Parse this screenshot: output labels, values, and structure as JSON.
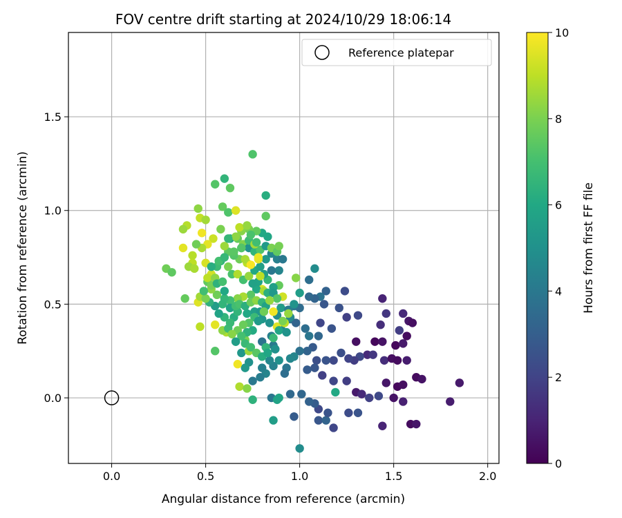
{
  "chart_data": {
    "type": "scatter",
    "title": "FOV centre drift starting at 2024/10/29 18:06:14",
    "xlabel": "Angular distance from reference (arcmin)",
    "ylabel": "Rotation from reference (arcmin)",
    "xlim": [
      -0.23,
      2.06
    ],
    "ylim": [
      -0.35,
      1.95
    ],
    "xticks": [
      "0.0",
      "0.5",
      "1.0",
      "1.5",
      "2.0"
    ],
    "xtick_values": [
      0,
      0.5,
      1.0,
      1.5,
      2.0
    ],
    "yticks": [
      "0.0",
      "0.5",
      "1.0",
      "1.5"
    ],
    "ytick_values": [
      0,
      0.5,
      1.0,
      1.5
    ],
    "grid": true,
    "legend": {
      "placement": "top-right",
      "entries": [
        "Reference platepar"
      ]
    },
    "reference_point": {
      "x": 0.0,
      "y": 0.0
    },
    "colorbar": {
      "label": "Hours from first FF file",
      "min": 0,
      "max": 10,
      "ticks": [
        "0",
        "2",
        "4",
        "6",
        "8",
        "10"
      ],
      "tick_values": [
        0,
        2,
        4,
        6,
        8,
        10
      ],
      "colormap": "viridis"
    },
    "points": [
      [
        1.44,
        0.53,
        1.0
      ],
      [
        1.46,
        0.45,
        1.6
      ],
      [
        1.55,
        0.45,
        1.2
      ],
      [
        1.58,
        0.41,
        0.6
      ],
      [
        1.6,
        0.4,
        0.4
      ],
      [
        1.43,
        0.39,
        1.3
      ],
      [
        1.53,
        0.36,
        1.8
      ],
      [
        1.4,
        0.3,
        0.2
      ],
      [
        1.44,
        0.3,
        0.5
      ],
      [
        1.51,
        0.28,
        0.2
      ],
      [
        1.55,
        0.29,
        0.7
      ],
      [
        1.57,
        0.33,
        0.3
      ],
      [
        1.36,
        0.23,
        1.2
      ],
      [
        1.39,
        0.23,
        1.6
      ],
      [
        1.45,
        0.2,
        1.3
      ],
      [
        1.49,
        0.21,
        0.4
      ],
      [
        1.52,
        0.2,
        0.3
      ],
      [
        1.57,
        0.2,
        0.8
      ],
      [
        1.62,
        0.11,
        0.3
      ],
      [
        1.65,
        0.1,
        0.5
      ],
      [
        1.46,
        0.08,
        0.6
      ],
      [
        1.52,
        0.06,
        0.2
      ],
      [
        1.55,
        0.07,
        0.4
      ],
      [
        1.85,
        0.08,
        0.7
      ],
      [
        1.8,
        -0.02,
        0.8
      ],
      [
        1.59,
        -0.14,
        0.3
      ],
      [
        1.62,
        -0.14,
        0.6
      ],
      [
        1.44,
        -0.15,
        1.0
      ],
      [
        1.3,
        0.3,
        0.4
      ],
      [
        1.32,
        0.22,
        2.2
      ],
      [
        1.29,
        0.2,
        1.8
      ],
      [
        1.26,
        0.21,
        2.0
      ],
      [
        1.22,
        0.24,
        2.4
      ],
      [
        1.18,
        0.2,
        2.2
      ],
      [
        1.14,
        0.2,
        2.6
      ],
      [
        1.09,
        0.2,
        2.4
      ],
      [
        1.12,
        0.12,
        1.9
      ],
      [
        1.18,
        0.09,
        2.1
      ],
      [
        1.25,
        0.09,
        1.8
      ],
      [
        1.3,
        0.03,
        0.7
      ],
      [
        1.33,
        0.02,
        1.2
      ],
      [
        1.37,
        0.0,
        1.9
      ],
      [
        1.42,
        0.01,
        2.2
      ],
      [
        1.5,
        0.0,
        0.5
      ],
      [
        1.55,
        -0.02,
        0.9
      ],
      [
        1.26,
        -0.08,
        2.3
      ],
      [
        1.31,
        -0.08,
        2.6
      ],
      [
        1.18,
        -0.16,
        2.1
      ],
      [
        1.1,
        -0.12,
        2.7
      ],
      [
        1.14,
        -0.12,
        3.2
      ],
      [
        1.1,
        -0.06,
        2.2
      ],
      [
        1.08,
        -0.03,
        2.9
      ],
      [
        1.05,
        -0.02,
        3.1
      ],
      [
        1.01,
        0.02,
        3.3
      ],
      [
        0.97,
        -0.1,
        2.9
      ],
      [
        0.95,
        0.02,
        3.4
      ],
      [
        0.85,
        0.0,
        3.9
      ],
      [
        0.89,
        0.0,
        5.9
      ],
      [
        1.0,
        -0.27,
        4.8
      ],
      [
        1.24,
        0.57,
        2.3
      ],
      [
        1.21,
        0.48,
        2.5
      ],
      [
        1.25,
        0.43,
        1.9
      ],
      [
        1.31,
        0.44,
        2.2
      ],
      [
        1.17,
        0.37,
        2.6
      ],
      [
        1.13,
        0.5,
        2.7
      ],
      [
        1.11,
        0.4,
        2.1
      ],
      [
        1.14,
        0.57,
        3.1
      ],
      [
        1.11,
        0.54,
        3.8
      ],
      [
        1.08,
        0.53,
        3.2
      ],
      [
        1.05,
        0.54,
        3.4
      ],
      [
        1.05,
        0.63,
        3.6
      ],
      [
        1.08,
        0.69,
        4.8
      ],
      [
        1.0,
        0.48,
        3.5
      ],
      [
        0.97,
        0.49,
        3.8
      ],
      [
        0.95,
        0.42,
        3.9
      ],
      [
        0.98,
        0.4,
        3.2
      ],
      [
        1.03,
        0.37,
        3.6
      ],
      [
        1.05,
        0.33,
        3.9
      ],
      [
        1.1,
        0.33,
        3.3
      ],
      [
        1.07,
        0.27,
        2.8
      ],
      [
        1.04,
        0.25,
        3.2
      ],
      [
        1.0,
        0.25,
        3.7
      ],
      [
        0.97,
        0.22,
        4.5
      ],
      [
        0.93,
        0.16,
        3.9
      ],
      [
        0.92,
        0.13,
        3.6
      ],
      [
        1.08,
        0.16,
        2.7
      ],
      [
        1.04,
        0.15,
        2.9
      ],
      [
        0.9,
        0.37,
        4.4
      ],
      [
        0.85,
        0.33,
        4.3
      ],
      [
        0.8,
        0.3,
        3.8
      ],
      [
        0.86,
        0.28,
        4.1
      ],
      [
        0.82,
        0.27,
        6.5
      ],
      [
        0.87,
        0.26,
        4.7
      ],
      [
        0.89,
        0.2,
        5.0
      ],
      [
        0.95,
        0.21,
        4.6
      ],
      [
        0.86,
        0.17,
        4.4
      ],
      [
        0.82,
        0.13,
        4.5
      ],
      [
        0.79,
        0.11,
        4.2
      ],
      [
        0.75,
        0.09,
        4.0
      ],
      [
        0.8,
        0.16,
        4.3
      ],
      [
        0.84,
        0.2,
        4.6
      ],
      [
        0.73,
        0.19,
        5.0
      ],
      [
        0.69,
        0.24,
        5.3
      ],
      [
        0.71,
        0.16,
        5.3
      ],
      [
        0.68,
        0.06,
        8.8
      ],
      [
        0.72,
        0.05,
        8.2
      ],
      [
        0.67,
        0.18,
        9.8
      ],
      [
        0.66,
        0.3,
        6.5
      ],
      [
        0.71,
        0.31,
        8.0
      ],
      [
        0.73,
        0.25,
        8.5
      ],
      [
        0.86,
        -0.12,
        5.5
      ],
      [
        0.88,
        -0.01,
        5.8
      ],
      [
        0.75,
        -0.01,
        6.4
      ],
      [
        1.19,
        0.03,
        6.0
      ],
      [
        1.15,
        -0.08,
        2.6
      ],
      [
        0.55,
        0.25,
        7.3
      ],
      [
        0.47,
        0.38,
        9.0
      ],
      [
        0.55,
        0.39,
        9.6
      ],
      [
        0.61,
        0.35,
        8.8
      ],
      [
        0.59,
        0.36,
        8.3
      ],
      [
        0.62,
        0.37,
        6.8
      ],
      [
        0.65,
        0.43,
        6.2
      ],
      [
        0.67,
        0.46,
        6.5
      ],
      [
        0.72,
        0.45,
        6.0
      ],
      [
        0.76,
        0.46,
        5.6
      ],
      [
        0.8,
        0.42,
        5.2
      ],
      [
        0.84,
        0.4,
        5.0
      ],
      [
        0.88,
        0.44,
        4.8
      ],
      [
        0.9,
        0.48,
        5.5
      ],
      [
        0.94,
        0.47,
        4.2
      ],
      [
        0.95,
        0.43,
        4.6
      ],
      [
        0.92,
        0.4,
        9.0
      ],
      [
        0.88,
        0.38,
        9.5
      ],
      [
        0.86,
        0.46,
        9.8
      ],
      [
        0.91,
        0.54,
        9.3
      ],
      [
        0.98,
        0.64,
        8.2
      ],
      [
        0.89,
        0.6,
        7.6
      ],
      [
        0.86,
        0.59,
        5.6
      ],
      [
        0.83,
        0.63,
        6.6
      ],
      [
        0.8,
        0.58,
        9.4
      ],
      [
        0.77,
        0.58,
        6.0
      ],
      [
        0.74,
        0.55,
        7.4
      ],
      [
        0.7,
        0.54,
        8.7
      ],
      [
        0.67,
        0.53,
        8.2
      ],
      [
        0.63,
        0.52,
        6.9
      ],
      [
        0.6,
        0.53,
        6.6
      ],
      [
        0.56,
        0.55,
        7.8
      ],
      [
        0.53,
        0.58,
        8.3
      ],
      [
        0.51,
        0.62,
        7.5
      ],
      [
        0.53,
        0.66,
        9.3
      ],
      [
        0.56,
        0.7,
        6.8
      ],
      [
        0.58,
        0.73,
        6.5
      ],
      [
        0.62,
        0.7,
        8.0
      ],
      [
        0.64,
        0.66,
        7.1
      ],
      [
        0.67,
        0.66,
        8.8
      ],
      [
        0.7,
        0.63,
        7.0
      ],
      [
        0.73,
        0.65,
        8.4
      ],
      [
        0.76,
        0.68,
        6.0
      ],
      [
        0.79,
        0.7,
        5.6
      ],
      [
        0.82,
        0.74,
        5.3
      ],
      [
        0.85,
        0.77,
        4.6
      ],
      [
        0.88,
        0.74,
        4.3
      ],
      [
        0.91,
        0.74,
        4.0
      ],
      [
        0.89,
        0.68,
        4.5
      ],
      [
        0.85,
        0.68,
        4.0
      ],
      [
        0.81,
        0.66,
        5.5
      ],
      [
        0.78,
        0.62,
        5.8
      ],
      [
        0.75,
        0.61,
        5.7
      ],
      [
        0.72,
        0.72,
        9.0
      ],
      [
        0.68,
        0.74,
        7.8
      ],
      [
        0.65,
        0.76,
        7.3
      ],
      [
        0.62,
        0.78,
        7.5
      ],
      [
        0.6,
        0.81,
        8.5
      ],
      [
        0.63,
        0.85,
        5.6
      ],
      [
        0.67,
        0.85,
        7.6
      ],
      [
        0.7,
        0.82,
        8.1
      ],
      [
        0.73,
        0.8,
        5.0
      ],
      [
        0.76,
        0.78,
        6.5
      ],
      [
        0.79,
        0.79,
        7.2
      ],
      [
        0.82,
        0.81,
        5.4
      ],
      [
        0.85,
        0.8,
        8.0
      ],
      [
        0.88,
        0.78,
        7.5
      ],
      [
        0.89,
        0.81,
        7.9
      ],
      [
        0.83,
        0.86,
        5.9
      ],
      [
        0.8,
        0.88,
        6.0
      ],
      [
        0.77,
        0.89,
        7.6
      ],
      [
        0.73,
        0.9,
        7.9
      ],
      [
        0.69,
        0.89,
        8.2
      ],
      [
        0.66,
        0.86,
        8.3
      ],
      [
        0.68,
        0.91,
        9.0
      ],
      [
        0.72,
        0.92,
        8.4
      ],
      [
        0.58,
        0.9,
        8.0
      ],
      [
        0.62,
        0.85,
        6.6
      ],
      [
        0.54,
        0.85,
        9.2
      ],
      [
        0.51,
        0.82,
        9.6
      ],
      [
        0.48,
        0.8,
        8.7
      ],
      [
        0.45,
        0.82,
        7.8
      ],
      [
        0.43,
        0.76,
        8.9
      ],
      [
        0.38,
        0.8,
        9.6
      ],
      [
        0.43,
        0.72,
        9.0
      ],
      [
        0.41,
        0.7,
        8.5
      ],
      [
        0.44,
        0.69,
        8.7
      ],
      [
        0.5,
        0.72,
        9.4
      ],
      [
        0.48,
        0.88,
        9.8
      ],
      [
        0.47,
        0.96,
        9.1
      ],
      [
        0.5,
        0.95,
        8.6
      ],
      [
        0.46,
        1.01,
        8.3
      ],
      [
        0.4,
        0.92,
        8.9
      ],
      [
        0.38,
        0.9,
        8.5
      ],
      [
        0.29,
        0.69,
        7.8
      ],
      [
        0.32,
        0.67,
        7.5
      ],
      [
        0.39,
        0.53,
        7.6
      ],
      [
        0.46,
        0.51,
        9.5
      ],
      [
        0.47,
        0.54,
        8.6
      ],
      [
        0.51,
        0.64,
        9.0
      ],
      [
        0.55,
        0.64,
        8.3
      ],
      [
        0.53,
        0.6,
        7.9
      ],
      [
        0.56,
        0.61,
        6.4
      ],
      [
        0.59,
        0.62,
        7.0
      ],
      [
        0.6,
        0.57,
        6.0
      ],
      [
        0.59,
        0.5,
        6.5
      ],
      [
        0.63,
        0.48,
        5.8
      ],
      [
        0.66,
        0.49,
        6.9
      ],
      [
        0.68,
        0.5,
        7.1
      ],
      [
        0.71,
        0.49,
        6.3
      ],
      [
        0.74,
        0.51,
        7.7
      ],
      [
        0.77,
        0.52,
        8.3
      ],
      [
        0.8,
        0.51,
        6.6
      ],
      [
        0.82,
        0.49,
        5.7
      ],
      [
        0.79,
        0.46,
        5.3
      ],
      [
        0.76,
        0.43,
        6.8
      ],
      [
        0.73,
        0.4,
        7.3
      ],
      [
        0.7,
        0.39,
        7.7
      ],
      [
        0.67,
        0.36,
        7.8
      ],
      [
        0.64,
        0.34,
        8.2
      ],
      [
        0.63,
        0.4,
        6.7
      ],
      [
        0.6,
        0.43,
        6.5
      ],
      [
        0.57,
        0.45,
        5.8
      ],
      [
        0.55,
        0.49,
        5.5
      ],
      [
        0.52,
        0.51,
        6.4
      ],
      [
        0.5,
        0.53,
        8.0
      ],
      [
        0.49,
        0.57,
        6.9
      ],
      [
        0.53,
        0.7,
        6.2
      ],
      [
        0.57,
        0.73,
        7.0
      ],
      [
        0.6,
        0.75,
        6.6
      ],
      [
        0.65,
        0.78,
        7.4
      ],
      [
        0.69,
        0.8,
        6.1
      ],
      [
        0.73,
        0.84,
        6.8
      ],
      [
        0.76,
        0.82,
        8.6
      ],
      [
        0.78,
        0.74,
        9.6
      ],
      [
        0.79,
        0.65,
        9.0
      ],
      [
        0.81,
        0.57,
        8.7
      ],
      [
        0.83,
        0.56,
        6.3
      ],
      [
        0.86,
        0.56,
        5.3
      ],
      [
        0.88,
        0.53,
        7.3
      ],
      [
        0.84,
        0.52,
        8.4
      ],
      [
        0.81,
        0.46,
        7.8
      ],
      [
        0.78,
        0.41,
        5.4
      ],
      [
        0.75,
        0.36,
        6.1
      ],
      [
        0.72,
        0.35,
        6.4
      ],
      [
        0.69,
        0.33,
        7.0
      ],
      [
        0.66,
        0.3,
        5.5
      ],
      [
        0.71,
        0.29,
        6.7
      ],
      [
        0.74,
        0.27,
        6.9
      ],
      [
        0.77,
        0.24,
        7.4
      ],
      [
        0.8,
        0.22,
        6.2
      ],
      [
        0.83,
        0.24,
        5.9
      ],
      [
        0.86,
        0.32,
        6.7
      ],
      [
        0.89,
        0.36,
        5.9
      ],
      [
        0.93,
        0.35,
        5.1
      ],
      [
        0.87,
        0.26,
        5.0
      ],
      [
        0.55,
        1.14,
        7.3
      ],
      [
        0.6,
        1.17,
        6.5
      ],
      [
        0.63,
        1.12,
        7.5
      ],
      [
        0.59,
        1.02,
        7.6
      ],
      [
        0.62,
        0.99,
        7.2
      ],
      [
        0.66,
        1.0,
        9.5
      ],
      [
        0.75,
        1.3,
        7.2
      ],
      [
        0.82,
        1.08,
        6.2
      ],
      [
        0.82,
        0.97,
        7.5
      ],
      [
        0.91,
        0.41,
        8.0
      ],
      [
        0.94,
        0.45,
        8.4
      ],
      [
        0.97,
        0.5,
        5.1
      ],
      [
        1.0,
        0.56,
        5.5
      ],
      [
        0.69,
        0.8,
        7.3
      ],
      [
        0.71,
        0.74,
        8.7
      ],
      [
        0.74,
        0.71,
        9.9
      ],
      [
        0.78,
        0.75,
        9.7
      ],
      [
        0.77,
        0.83,
        6.9
      ],
      [
        0.74,
        0.87,
        7.1
      ]
    ]
  }
}
